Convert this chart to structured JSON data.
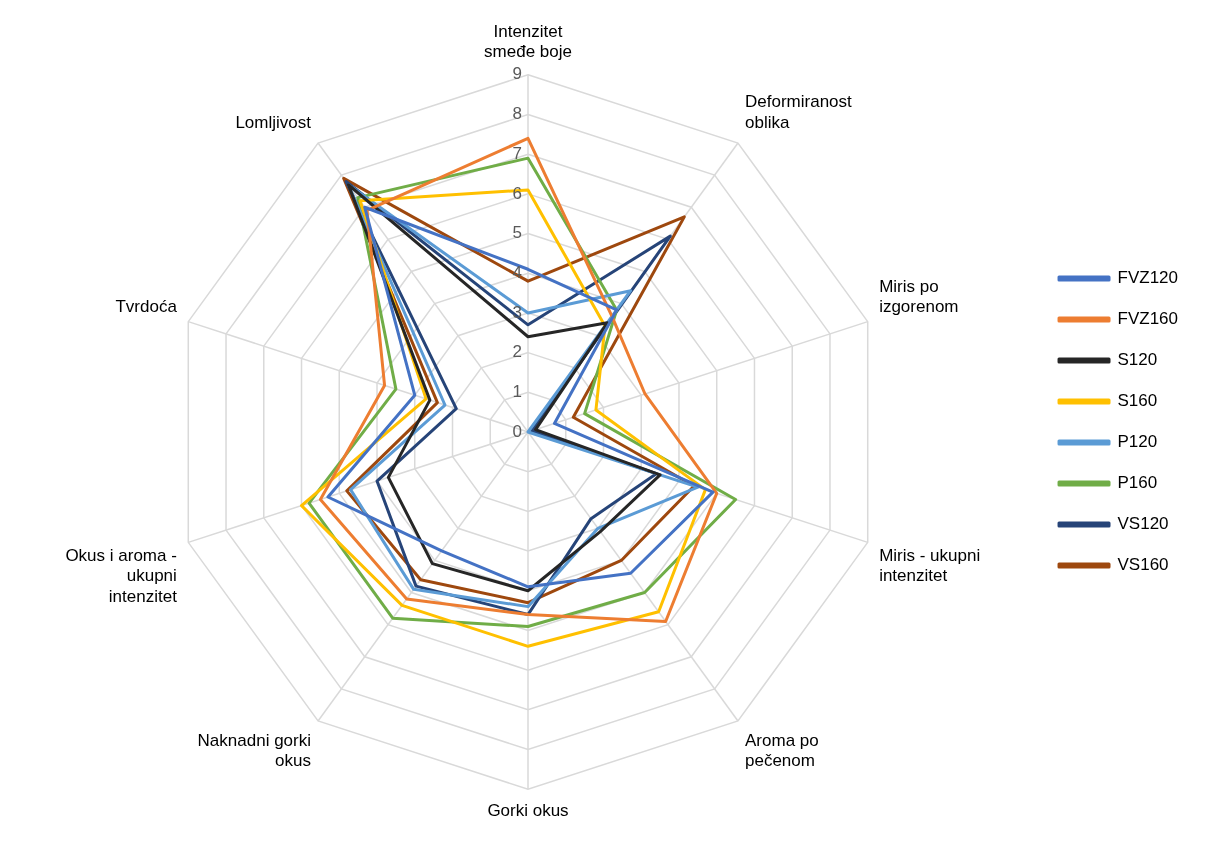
{
  "chart_data": {
    "type": "radar",
    "categories": [
      "Intenzitet smeđe boje",
      "Deformiranost oblika",
      "Miris po izgorenom",
      "Miris - ukupni intenzitet",
      "Aroma po pečenom",
      "Gorki okus",
      "Naknadni gorki okus",
      "Okus i aroma - ukupni intenzitet",
      "Tvrdoća",
      "Lomljivost"
    ],
    "ylim": [
      0,
      9
    ],
    "yticks": [
      0,
      1,
      2,
      3,
      4,
      5,
      6,
      7,
      8,
      9
    ],
    "grid": true,
    "legend": "right",
    "marker": "none",
    "series": [
      {
        "name": "FVZ120",
        "color": "#4472c4",
        "values": [
          4.1,
          3.8,
          0.7,
          4.9,
          4.4,
          3.9,
          3.7,
          5.3,
          3.0,
          7.0
        ]
      },
      {
        "name": "FVZ160",
        "color": "#ed7d31",
        "values": [
          7.4,
          3.6,
          3.1,
          5.0,
          5.9,
          4.6,
          5.2,
          5.5,
          3.8,
          6.9
        ]
      },
      {
        "name": "S120",
        "color": "#262626",
        "values": [
          2.4,
          3.4,
          0.2,
          3.5,
          3.1,
          4.0,
          4.1,
          3.7,
          2.6,
          7.7
        ]
      },
      {
        "name": "S160",
        "color": "#ffc000",
        "values": [
          6.1,
          3.3,
          1.8,
          4.7,
          5.6,
          5.4,
          5.4,
          6.0,
          2.7,
          7.2
        ]
      },
      {
        "name": "P120",
        "color": "#5b9bd5",
        "values": [
          3.0,
          4.4,
          0.0,
          4.5,
          3.0,
          4.4,
          4.9,
          4.7,
          2.2,
          7.7
        ]
      },
      {
        "name": "P160",
        "color": "#70ad47",
        "values": [
          6.9,
          3.8,
          1.5,
          5.5,
          5.0,
          4.9,
          5.8,
          5.8,
          3.5,
          7.3
        ]
      },
      {
        "name": "VS120",
        "color": "#264478",
        "values": [
          2.7,
          6.1,
          0.1,
          3.4,
          2.7,
          4.6,
          4.8,
          4.0,
          1.9,
          7.8
        ]
      },
      {
        "name": "VS160",
        "color": "#9e480e",
        "values": [
          3.8,
          6.7,
          1.2,
          4.4,
          4.0,
          4.3,
          4.6,
          4.8,
          2.4,
          7.9
        ]
      }
    ]
  }
}
